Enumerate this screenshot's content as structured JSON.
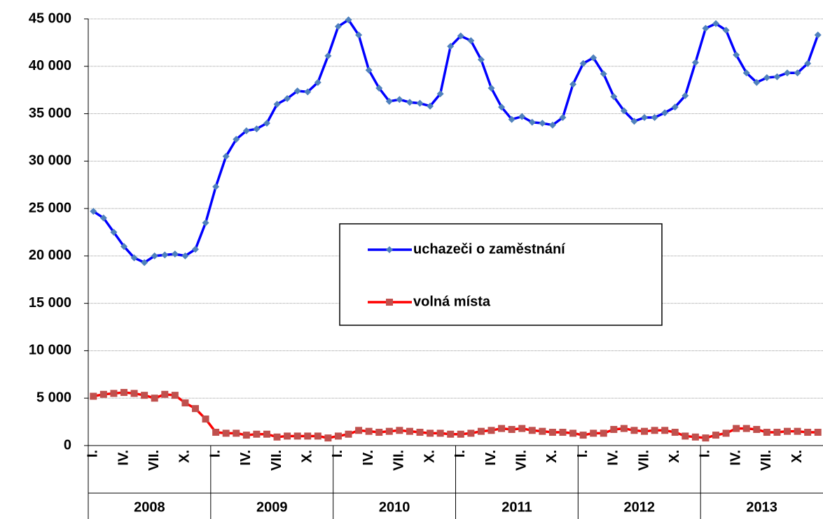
{
  "chart_data": {
    "type": "line",
    "categories": [
      "I.",
      null,
      null,
      "IV.",
      null,
      null,
      "VII.",
      null,
      null,
      "X.",
      null,
      null,
      "I.",
      null,
      null,
      "IV.",
      null,
      null,
      "VII.",
      null,
      null,
      "X.",
      null,
      null,
      "I.",
      null,
      null,
      "IV.",
      null,
      null,
      "VII.",
      null,
      null,
      "X.",
      null,
      null,
      "I.",
      null,
      null,
      "IV.",
      null,
      null,
      "VII.",
      null,
      null,
      "X.",
      null,
      null,
      "I.",
      null,
      null,
      "IV.",
      null,
      null,
      "VII.",
      null,
      null,
      "X.",
      null,
      null,
      "I.",
      null,
      null,
      "IV.",
      null,
      null,
      "VII.",
      null,
      null,
      "X.",
      null,
      null
    ],
    "category_groups": [
      "2008",
      "2009",
      "2010",
      "2011",
      "2012",
      "2013"
    ],
    "series": [
      {
        "name": "uchazeči o zaměstnání",
        "color": "#0000ff",
        "marker": "diamond",
        "marker_color": "#4f81bd",
        "values": [
          24700,
          24000,
          22500,
          21000,
          19800,
          19300,
          20000,
          20100,
          20200,
          20000,
          20700,
          23500,
          27300,
          30500,
          32300,
          33200,
          33400,
          34000,
          36000,
          36600,
          37400,
          37300,
          38300,
          41100,
          44200,
          44900,
          43300,
          39600,
          37700,
          36300,
          36500,
          36200,
          36100,
          35800,
          37100,
          42100,
          43200,
          42700,
          40700,
          37700,
          35700,
          34400,
          34700,
          34100,
          34000,
          33800,
          34600,
          38100,
          40300,
          40900,
          39200,
          36800,
          35300,
          34200,
          34600,
          34600,
          35100,
          35700,
          36900,
          40400,
          44000,
          44500,
          43800,
          41200,
          39300,
          38300,
          38800,
          38900,
          39300,
          39300,
          40300,
          43300
        ]
      },
      {
        "name": "volná místa",
        "color": "#ff0000",
        "marker": "square",
        "marker_color": "#c0504d",
        "values": [
          5200,
          5400,
          5500,
          5600,
          5500,
          5300,
          5000,
          5400,
          5300,
          4500,
          3900,
          2800,
          1400,
          1300,
          1300,
          1100,
          1200,
          1200,
          900,
          1000,
          1000,
          1000,
          1000,
          800,
          1000,
          1200,
          1600,
          1500,
          1400,
          1500,
          1600,
          1500,
          1400,
          1300,
          1300,
          1200,
          1200,
          1300,
          1500,
          1600,
          1800,
          1700,
          1800,
          1600,
          1500,
          1400,
          1400,
          1300,
          1100,
          1300,
          1300,
          1700,
          1800,
          1600,
          1500,
          1600,
          1600,
          1400,
          1000,
          900,
          800,
          1100,
          1300,
          1800,
          1800,
          1700,
          1400,
          1400,
          1500,
          1500,
          1400,
          1400
        ]
      }
    ],
    "ylim": [
      0,
      45000
    ],
    "yticks": [
      0,
      {
        "value": 5000,
        "label": "5 000"
      },
      {
        "value": 10000,
        "label": "10 000"
      },
      {
        "value": 15000,
        "label": "15 000"
      },
      {
        "value": 20000,
        "label": "20 000"
      },
      {
        "value": 25000,
        "label": "25 000"
      },
      {
        "value": 30000,
        "label": "30 000"
      },
      {
        "value": 35000,
        "label": "35 000"
      },
      {
        "value": 40000,
        "label": "40 000"
      },
      {
        "value": 45000,
        "label": "45 000"
      }
    ],
    "grid": true,
    "legend": "center"
  }
}
